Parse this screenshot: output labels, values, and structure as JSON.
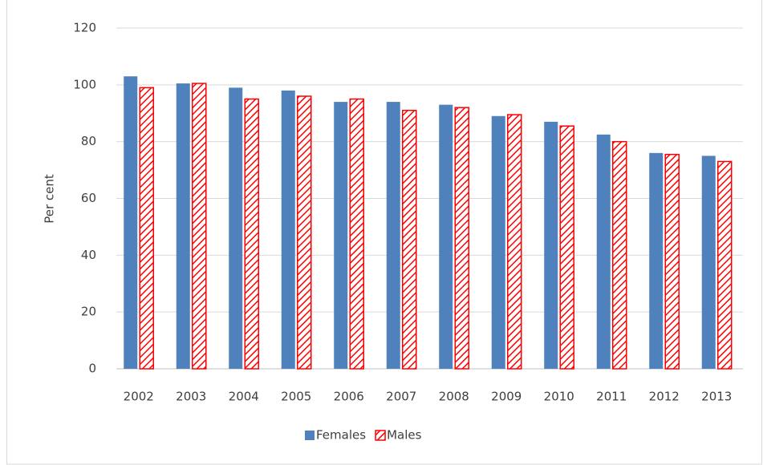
{
  "chart_data": {
    "type": "bar",
    "y_label": "Per cent",
    "categories": [
      "2002",
      "2003",
      "2004",
      "2005",
      "2006",
      "2007",
      "2008",
      "2009",
      "2010",
      "2011",
      "2012",
      "2013"
    ],
    "series": [
      {
        "name": "Females",
        "color": "#4f81bd",
        "values": [
          103,
          100.5,
          99,
          98,
          94,
          94,
          93,
          89,
          87,
          82.5,
          76,
          75
        ]
      },
      {
        "name": "Males",
        "color": "#ff0000",
        "pattern": "hatch",
        "values": [
          99,
          100.5,
          95,
          96,
          95,
          91,
          92,
          89.5,
          85.5,
          80,
          75.5,
          73
        ]
      }
    ],
    "ylim": [
      0,
      120
    ],
    "yticks": [
      0,
      20,
      40,
      60,
      80,
      100,
      120
    ],
    "grid": true,
    "legend": "bottom"
  }
}
